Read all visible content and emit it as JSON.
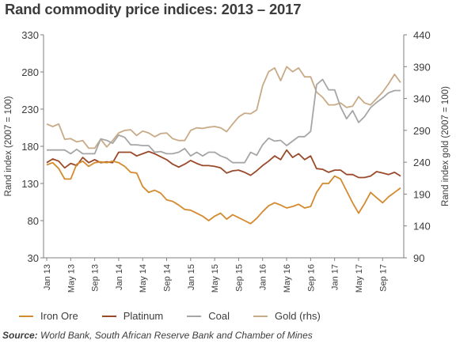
{
  "title": "Rand commodity price indices: 2013 – 2017",
  "source_label": "Source:",
  "source_text": "World Bank, South African Reserve Bank and Chamber of Mines",
  "chart_data": {
    "type": "line",
    "x": [
      "Jan 13",
      "Feb 13",
      "Mar 13",
      "Apr 13",
      "May 13",
      "Jun 13",
      "Jul 13",
      "Aug 13",
      "Sep 13",
      "Oct 13",
      "Nov 13",
      "Dec 13",
      "Jan 14",
      "Feb 14",
      "Mar 14",
      "Apr 14",
      "May 14",
      "Jun 14",
      "Jul 14",
      "Aug 14",
      "Sep 14",
      "Oct 14",
      "Nov 14",
      "Dec 14",
      "Jan 15",
      "Feb 15",
      "Mar 15",
      "Apr 15",
      "May 15",
      "Jun 15",
      "Jul 15",
      "Aug 15",
      "Sep 15",
      "Oct 15",
      "Nov 15",
      "Dec 15",
      "Jan 16",
      "Feb 16",
      "Mar 16",
      "Apr 16",
      "May 16",
      "Jun 16",
      "Jul 16",
      "Aug 16",
      "Sep 16",
      "Oct 16",
      "Nov 16",
      "Dec 16",
      "Jan 17",
      "Feb 17",
      "Mar 17",
      "Apr 17",
      "May 17",
      "Jun 17",
      "Jul 17",
      "Aug 17",
      "Sep 17",
      "Oct 17",
      "Nov 17",
      "Dec 17"
    ],
    "x_tick_labels": [
      "Jan 13",
      "May 13",
      "Sep 13",
      "Jan 14",
      "May 14",
      "Sep 14",
      "Jan 15",
      "May 15",
      "Sep 15",
      "Jan 16",
      "May 16",
      "Sep 16",
      "Jan 17",
      "May 17",
      "Sep 17"
    ],
    "ylabel": "Rand index (2007 = 100)",
    "y2label": "Rand index gold (2007 = 100)",
    "ylim": [
      30,
      330
    ],
    "y_ticks": [
      30,
      80,
      130,
      180,
      230,
      280,
      330
    ],
    "y2lim": [
      90,
      440
    ],
    "y2_ticks": [
      90,
      140,
      190,
      240,
      290,
      340,
      390,
      440
    ],
    "grid": false,
    "legend_position": "bottom",
    "series": [
      {
        "name": "Iron Ore",
        "axis": "left",
        "color": "#d48a2e",
        "values": [
          155,
          158,
          150,
          136,
          136,
          156,
          160,
          153,
          158,
          159,
          158,
          160,
          158,
          153,
          145,
          144,
          126,
          118,
          121,
          117,
          108,
          106,
          101,
          95,
          94,
          90,
          86,
          80,
          86,
          90,
          82,
          88,
          84,
          80,
          76,
          83,
          92,
          100,
          104,
          101,
          97,
          99,
          102,
          97,
          99,
          118,
          130,
          130,
          140,
          136,
          120,
          104,
          90,
          103,
          118,
          111,
          104,
          112,
          118,
          124
        ]
      },
      {
        "name": "Platinum",
        "axis": "left",
        "color": "#9a4a2a",
        "values": [
          158,
          163,
          160,
          151,
          157,
          154,
          165,
          158,
          162,
          158,
          159,
          158,
          172,
          172,
          172,
          167,
          170,
          173,
          170,
          166,
          162,
          156,
          152,
          156,
          161,
          157,
          154,
          154,
          153,
          151,
          144,
          147,
          148,
          145,
          141,
          147,
          154,
          160,
          167,
          162,
          175,
          165,
          170,
          162,
          167,
          150,
          149,
          145,
          148,
          148,
          142,
          142,
          138,
          138,
          140,
          146,
          144,
          142,
          145,
          140
        ]
      },
      {
        "name": "Coal",
        "axis": "left",
        "color": "#a6a6a6",
        "values": [
          175,
          175,
          175,
          175,
          170,
          176,
          170,
          170,
          170,
          190,
          188,
          184,
          195,
          192,
          182,
          182,
          181,
          181,
          172,
          173,
          170,
          170,
          172,
          177,
          167,
          172,
          167,
          172,
          172,
          167,
          164,
          158,
          158,
          158,
          172,
          168,
          182,
          191,
          187,
          188,
          181,
          187,
          193,
          193,
          200,
          263,
          270,
          256,
          256,
          233,
          217,
          228,
          212,
          220,
          232,
          239,
          245,
          252,
          255,
          255
        ]
      },
      {
        "name": "Gold (rhs)",
        "axis": "right",
        "color": "#c8aa86",
        "values": [
          300,
          296,
          300,
          276,
          277,
          272,
          274,
          262,
          262,
          276,
          264,
          274,
          286,
          290,
          291,
          282,
          289,
          286,
          280,
          285,
          286,
          277,
          274,
          274,
          290,
          294,
          293,
          295,
          296,
          294,
          288,
          300,
          311,
          317,
          316,
          322,
          360,
          382,
          388,
          368,
          390,
          382,
          388,
          374,
          374,
          350,
          342,
          330,
          330,
          333,
          326,
          328,
          343,
          333,
          330,
          340,
          350,
          363,
          378,
          365
        ]
      }
    ]
  }
}
